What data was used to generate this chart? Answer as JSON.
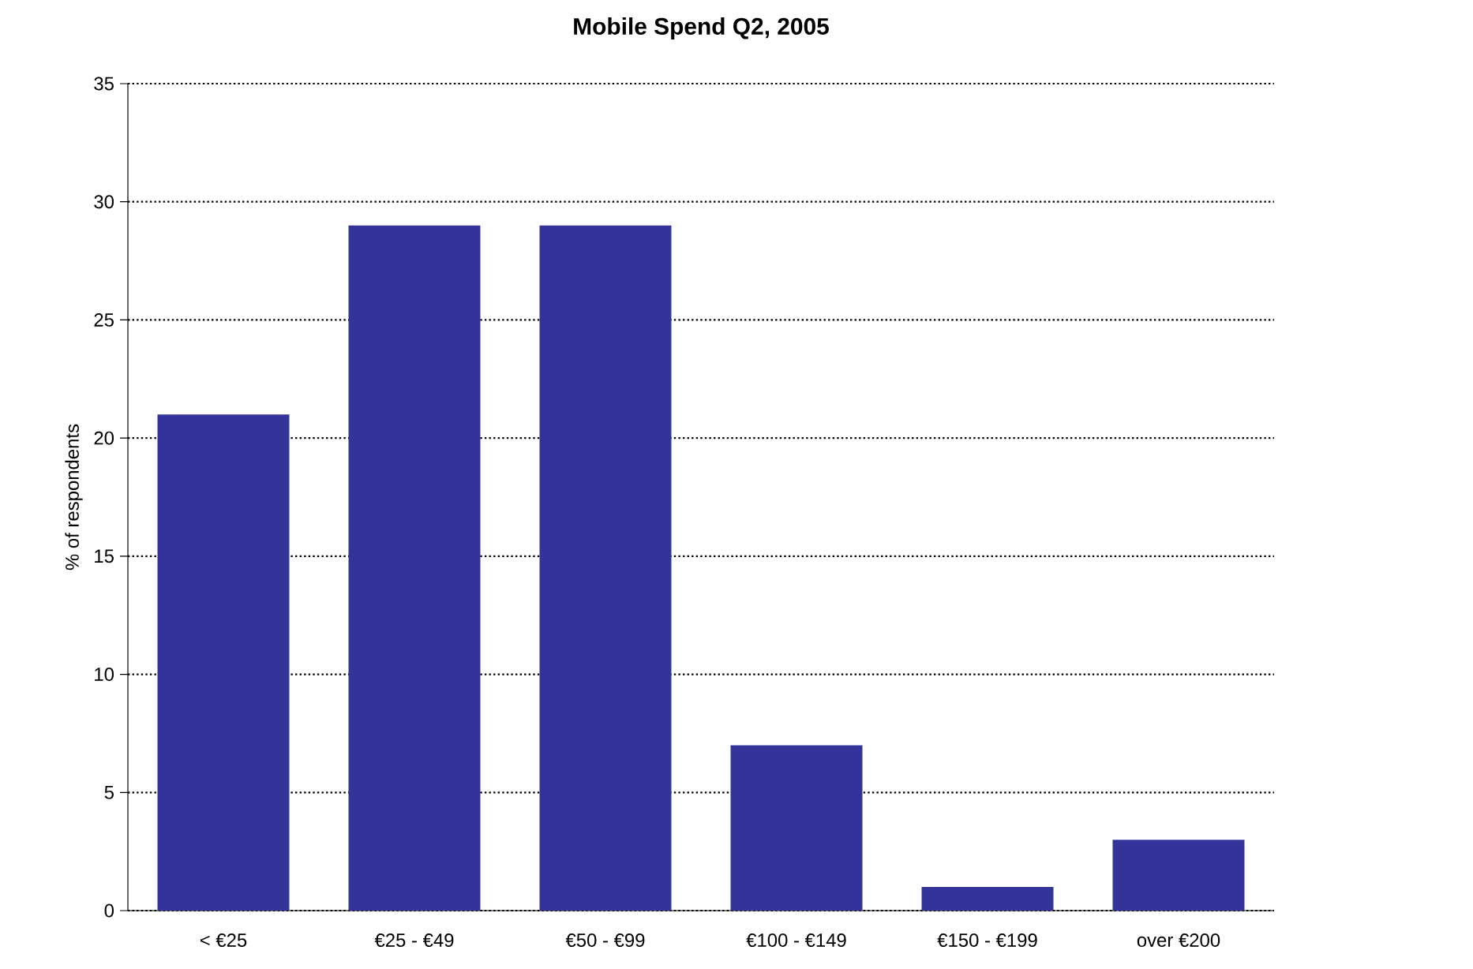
{
  "chart_data": {
    "type": "bar",
    "title": "Mobile Spend Q2, 2005",
    "ylabel": "% of respondents",
    "categories": [
      "< €25",
      "€25 - €49",
      "€50 - €99",
      "€100 - €149",
      "€150 - €199",
      "over €200"
    ],
    "values": [
      21,
      29,
      29,
      7,
      1,
      3
    ],
    "color": "#333399",
    "ylim": [
      0,
      35
    ],
    "yticks": [
      0,
      5,
      10,
      15,
      20,
      25,
      30,
      35
    ],
    "grid": "y"
  }
}
